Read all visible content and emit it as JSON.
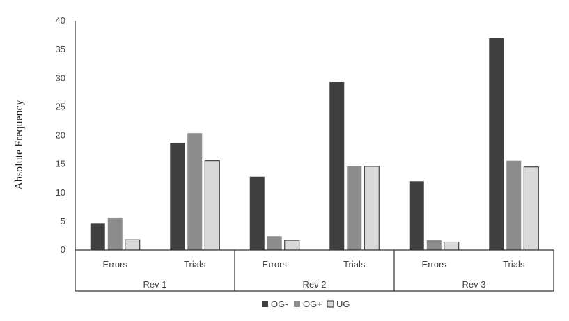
{
  "chart_data": {
    "type": "bar",
    "title": "",
    "xlabel": "",
    "ylabel": "Absolute Frequency",
    "ylim": [
      0,
      40
    ],
    "yticks": [
      0,
      5,
      10,
      15,
      20,
      25,
      30,
      35,
      40
    ],
    "grid": false,
    "legend_position": "bottom",
    "groups": [
      {
        "label": "Rev 1",
        "categories": [
          "Errors",
          "Trials"
        ]
      },
      {
        "label": "Rev 2",
        "categories": [
          "Errors",
          "Trials"
        ]
      },
      {
        "label": "Rev 3",
        "categories": [
          "Errors",
          "Trials"
        ]
      }
    ],
    "series": [
      {
        "name": "OG-",
        "color": "#404040",
        "values": [
          4.7,
          18.7,
          12.8,
          29.3,
          12.0,
          37.0
        ]
      },
      {
        "name": "OG+",
        "color": "#8c8c8c",
        "values": [
          5.6,
          20.4,
          2.4,
          14.6,
          1.7,
          15.6
        ]
      },
      {
        "name": "UG",
        "color": "#d9d9d9",
        "values": [
          1.8,
          15.6,
          1.7,
          14.6,
          1.4,
          14.5
        ]
      }
    ]
  }
}
